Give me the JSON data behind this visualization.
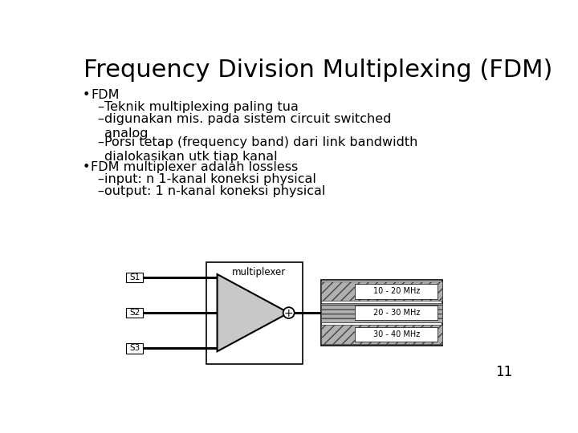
{
  "title": "Frequency Division Multiplexing (FDM)",
  "title_fontsize": 22,
  "background_color": "#ffffff",
  "bullet1": "FDM",
  "subs1": [
    "Teknik multiplexing paling tua",
    "digunakan mis. pada sistem circuit switched\nanalog",
    "Porsi tetap (frequency band) dari link bandwidth\ndialokasikan utk tiap kanal"
  ],
  "bullet2": "FDM multiplexer adalah lossless",
  "subs2": [
    "input: n 1-kanal koneksi physical",
    "output: 1 n-kanal koneksi physical"
  ],
  "diagram_label": "multiplexer",
  "s_labels": [
    "S1",
    "S2",
    "S3"
  ],
  "freq_labels": [
    "10 - 20 MHz",
    "20 - 30 MHz",
    "30 - 40 MHz"
  ],
  "page_number": "11",
  "text_color": "#000000",
  "tri_fill": "#c8c8c8",
  "freq_hatch_top": "///",
  "freq_hatch_mid": "---",
  "freq_hatch_bot": "///",
  "freq_fill": "#b0b0b0"
}
